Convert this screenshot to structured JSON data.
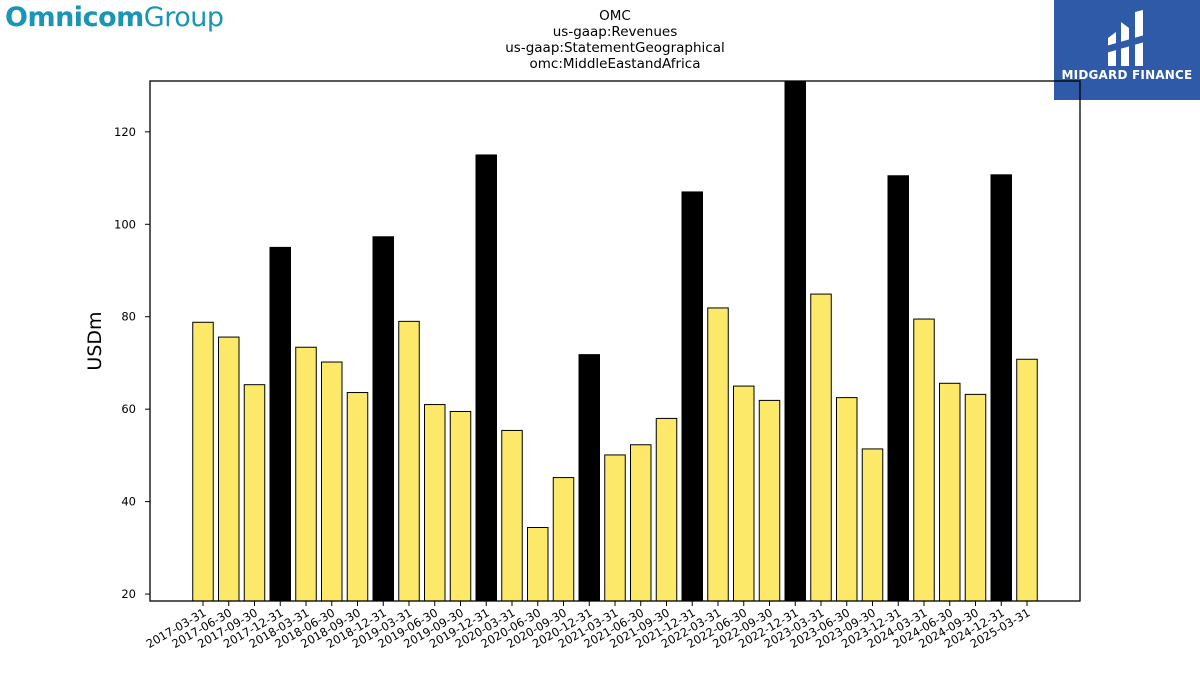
{
  "branding": {
    "company_bold": "Omnicom",
    "company_light": "Group",
    "badge_text": "MIDGARD FINANCE"
  },
  "chart_data": {
    "type": "bar",
    "title_lines": [
      "OMC",
      "us-gaap:Revenues",
      "us-gaap:StatementGeographical",
      "omc:MiddleEastandAfrica"
    ],
    "xlabel": "",
    "ylabel": "USDm",
    "ylim": [
      18.5,
      131
    ],
    "yticks": [
      20,
      40,
      60,
      80,
      100,
      120
    ],
    "grid": false,
    "colors": {
      "quarter": "#fce96a",
      "year_end": "#000000",
      "edge": "#000000"
    },
    "categories": [
      "2017-03-31",
      "2017-06-30",
      "2017-09-30",
      "2017-12-31",
      "2018-03-31",
      "2018-06-30",
      "2018-09-30",
      "2018-12-31",
      "2019-03-31",
      "2019-06-30",
      "2019-09-30",
      "2019-12-31",
      "2020-03-31",
      "2020-06-30",
      "2020-09-30",
      "2020-12-31",
      "2021-03-31",
      "2021-06-30",
      "2021-09-30",
      "2021-12-31",
      "2022-03-31",
      "2022-06-30",
      "2022-09-30",
      "2022-12-31",
      "2023-03-31",
      "2023-06-30",
      "2023-09-30",
      "2023-12-31",
      "2024-03-31",
      "2024-06-30",
      "2024-09-30",
      "2024-12-31",
      "2025-03-31"
    ],
    "values": [
      78.8,
      75.6,
      65.3,
      95.0,
      73.4,
      70.2,
      63.6,
      97.3,
      79.0,
      61.0,
      59.5,
      115.0,
      55.4,
      34.4,
      45.2,
      71.8,
      50.1,
      52.3,
      58.0,
      107.0,
      81.9,
      65.0,
      61.9,
      131.0,
      84.9,
      62.5,
      51.4,
      110.5,
      79.5,
      65.6,
      63.2,
      110.7,
      70.8
    ],
    "year_end": [
      false,
      false,
      false,
      true,
      false,
      false,
      false,
      true,
      false,
      false,
      false,
      true,
      false,
      false,
      false,
      true,
      false,
      false,
      false,
      true,
      false,
      false,
      false,
      true,
      false,
      false,
      false,
      true,
      false,
      false,
      false,
      true,
      false
    ]
  }
}
